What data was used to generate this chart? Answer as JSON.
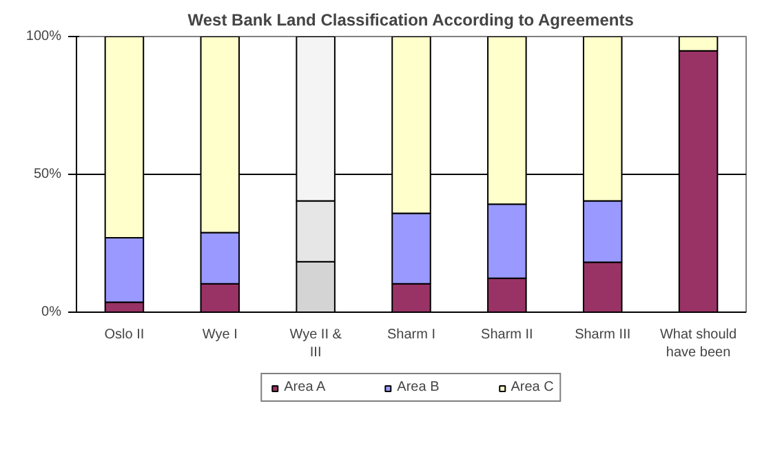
{
  "chart_data": {
    "type": "bar",
    "title": "West Bank Land Classification According to Agreements",
    "stacked": true,
    "categories": [
      "Oslo II",
      "Wye I",
      "Wye II & III",
      "Sharm I",
      "Sharm II",
      "Sharm III",
      "What should have been"
    ],
    "series": [
      {
        "name": "Area A",
        "color": "#993366",
        "colors": [
          "#993366",
          "#993366",
          "#d4d4d4",
          "#993366",
          "#993366",
          "#993366",
          "#993366"
        ],
        "values": [
          3.6,
          10.3,
          18.3,
          10.3,
          12.3,
          18.1,
          94.8
        ]
      },
      {
        "name": "Area B",
        "color": "#9999ff",
        "colors": [
          "#9999ff",
          "#9999ff",
          "#e6e6e6",
          "#9999ff",
          "#9999ff",
          "#9999ff",
          "#9999ff"
        ],
        "values": [
          23.4,
          18.6,
          22.1,
          25.6,
          26.9,
          22.3,
          0
        ]
      },
      {
        "name": "Area C",
        "color": "#ffffcc",
        "colors": [
          "#ffffcc",
          "#ffffcc",
          "#f4f4f4",
          "#ffffcc",
          "#ffffcc",
          "#ffffcc",
          "#ffffcc"
        ],
        "values": [
          73,
          71.1,
          59.6,
          64.1,
          60.8,
          59.6,
          5.2
        ]
      }
    ],
    "ylim": [
      0,
      100
    ],
    "yticks": [
      {
        "value": 0,
        "label": "0%"
      },
      {
        "value": 50,
        "label": "50%"
      },
      {
        "value": 100,
        "label": "100%"
      }
    ],
    "grid": "y",
    "legend": "bottom"
  }
}
